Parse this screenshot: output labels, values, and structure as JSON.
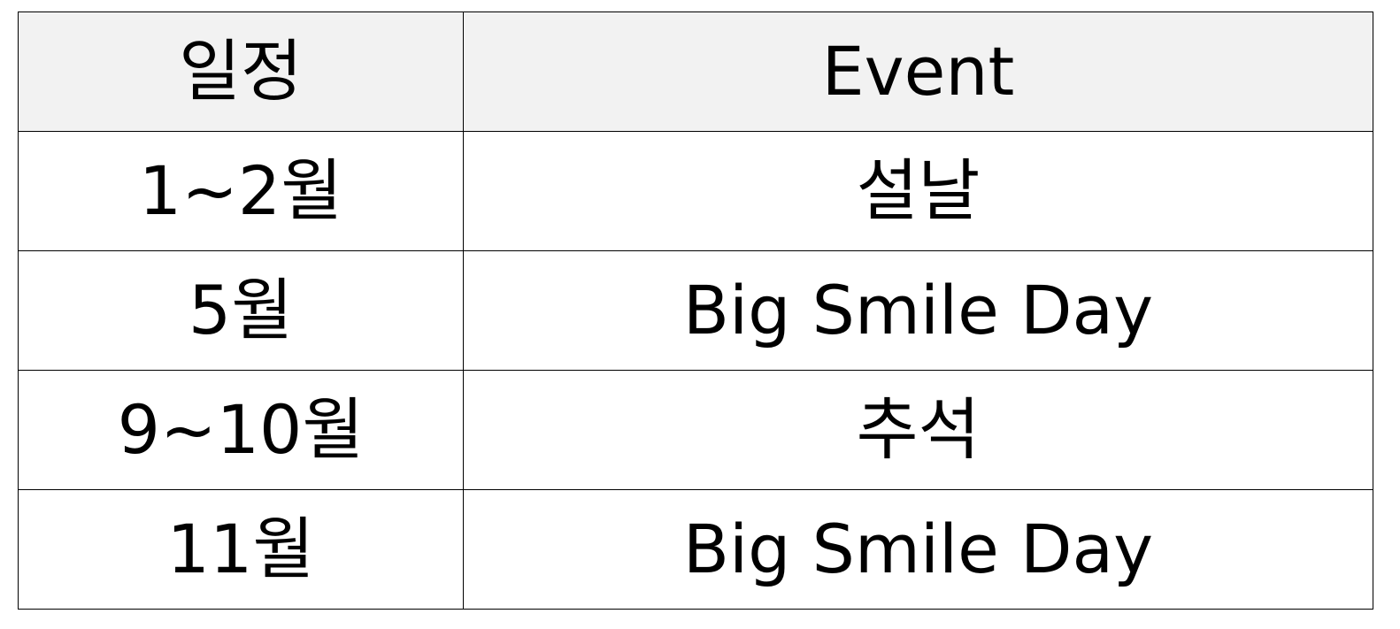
{
  "table": {
    "header": {
      "date": "일정",
      "event": "Event"
    },
    "rows": [
      {
        "date": "1~2월",
        "event": "설날"
      },
      {
        "date": "5월",
        "event": "Big Smile Day"
      },
      {
        "date": "9~10월",
        "event": "추석"
      },
      {
        "date": "11월",
        "event": "Big Smile Day"
      }
    ]
  },
  "colors": {
    "header_background": "#f2f2f2",
    "border": "#000000",
    "text": "#000000"
  }
}
